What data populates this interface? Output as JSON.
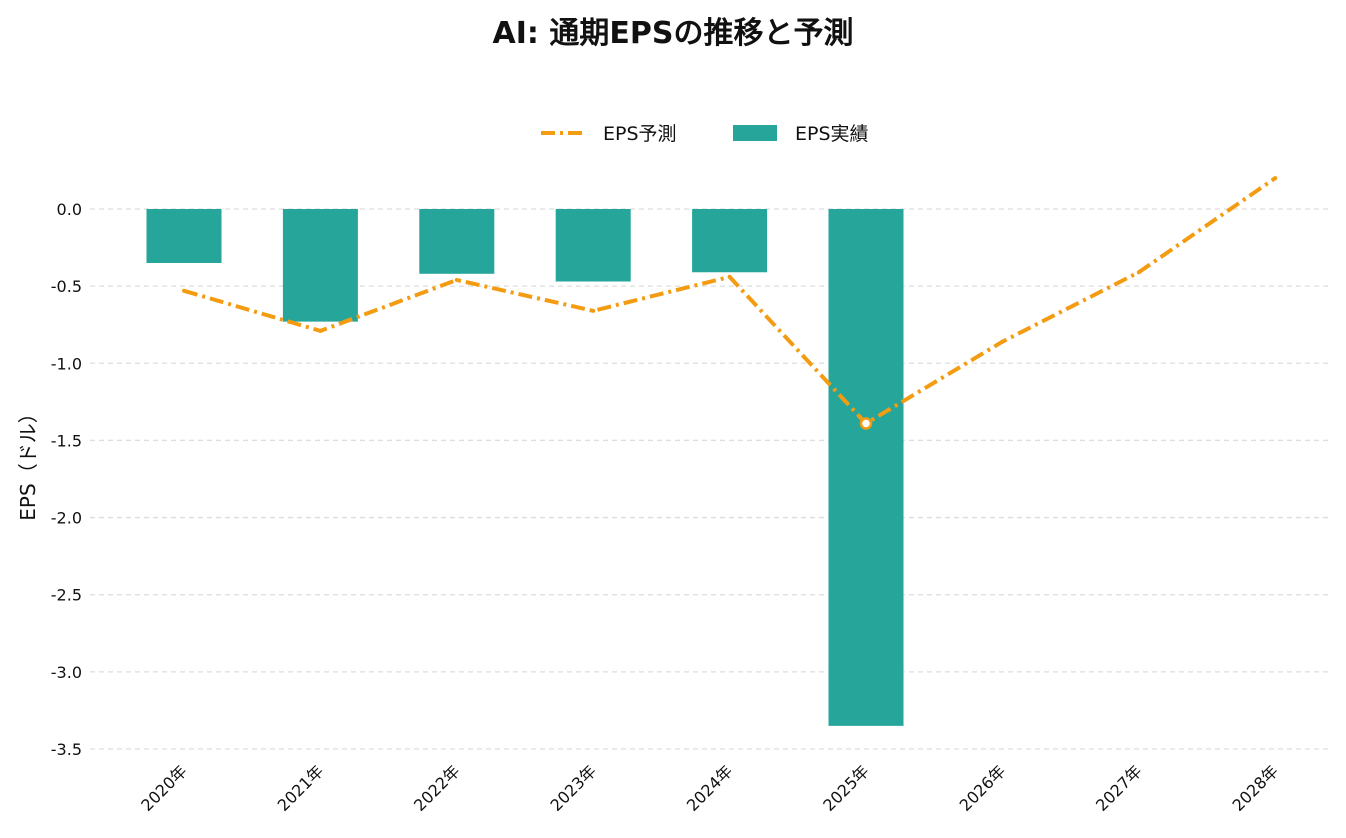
{
  "chart_data": {
    "type": "bar",
    "title": "AI: 通期EPSの推移と予測",
    "xlabel": "",
    "ylabel": "EPS（ドル）",
    "categories": [
      "2020年",
      "2021年",
      "2022年",
      "2023年",
      "2024年",
      "2025年",
      "2026年",
      "2027年",
      "2028年"
    ],
    "ylim": [
      -3.5,
      0.2
    ],
    "yticks": [
      "0.0",
      "-0.5",
      "-1.0",
      "-1.5",
      "-2.0",
      "-2.5",
      "-3.0",
      "-3.5"
    ],
    "grid": true,
    "legend_position": "top-center",
    "series": [
      {
        "name": "EPS予測",
        "kind": "line",
        "style": "dash-dot",
        "color": "#f39c12",
        "values": [
          -0.53,
          -0.79,
          -0.46,
          -0.66,
          -0.44,
          -1.39,
          -0.86,
          -0.41,
          0.2
        ]
      },
      {
        "name": "EPS実績",
        "kind": "bar",
        "color": "#26a69a",
        "values": [
          -0.35,
          -0.73,
          -0.42,
          -0.47,
          -0.41,
          -3.35,
          null,
          null,
          null
        ]
      }
    ],
    "highlight": {
      "series": "EPS予測",
      "category": "2025年"
    },
    "colors": {
      "grid": "#dddddd",
      "marker_fill": "#ffffff"
    }
  }
}
